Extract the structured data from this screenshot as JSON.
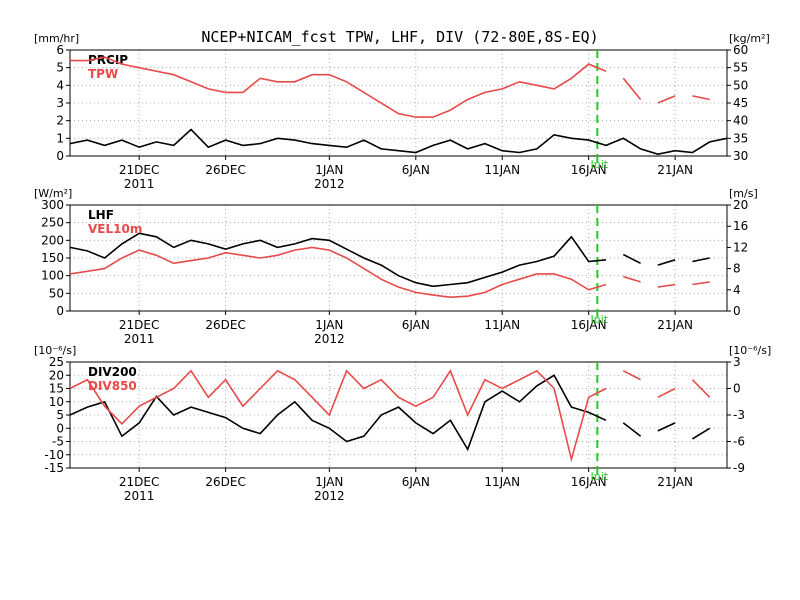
{
  "title": "NCEP+NICAM_fcst TPW, LHF, DIV (72-80E,8S-EQ)",
  "colors": {
    "black": "#000000",
    "red": "#e84a4a",
    "init_line": "#22cc22",
    "grid": "#aaaaaa"
  },
  "x_axis": {
    "ticks": [
      {
        "day": 4,
        "label": "21DEC",
        "year": "2011"
      },
      {
        "day": 9,
        "label": "26DEC",
        "year": ""
      },
      {
        "day": 15,
        "label": "1JAN",
        "year": "2012"
      },
      {
        "day": 20,
        "label": "6JAN",
        "year": ""
      },
      {
        "day": 25,
        "label": "11JAN",
        "year": ""
      },
      {
        "day": 30,
        "label": "16JAN",
        "year": ""
      },
      {
        "day": 35,
        "label": "21JAN",
        "year": ""
      }
    ],
    "range": [
      0,
      38
    ],
    "init_day": 30.5,
    "init_label": "Init"
  },
  "chart_data": [
    {
      "type": "line",
      "id": "tpw",
      "left_unit": "[mm/hr]",
      "right_unit": "[kg/m²]",
      "left_ylim": [
        0,
        6
      ],
      "left_ticks": [
        0,
        1,
        2,
        3,
        4,
        5,
        6
      ],
      "right_ylim": [
        30,
        60
      ],
      "right_ticks": [
        30,
        35,
        40,
        45,
        50,
        55,
        60
      ],
      "x": [
        0,
        1,
        2,
        3,
        4,
        5,
        6,
        7,
        8,
        9,
        10,
        11,
        12,
        13,
        14,
        15,
        16,
        17,
        18,
        19,
        20,
        21,
        22,
        23,
        24,
        25,
        26,
        27,
        28,
        29,
        30,
        31,
        32,
        33,
        34,
        35,
        36,
        37,
        38
      ],
      "series": [
        {
          "name": "PRCIP",
          "axis": "left",
          "color": "black",
          "values": [
            0.7,
            0.9,
            0.6,
            0.9,
            0.5,
            0.8,
            0.6,
            1.5,
            0.5,
            0.9,
            0.6,
            0.7,
            1.0,
            0.9,
            0.7,
            0.6,
            0.5,
            0.9,
            0.4,
            0.3,
            0.2,
            0.6,
            0.9,
            0.4,
            0.7,
            0.3,
            0.2,
            0.4,
            1.2,
            1.0,
            0.9,
            0.6,
            1.0,
            0.4,
            0.1,
            0.3,
            0.2,
            0.8,
            1.0
          ],
          "gaps": []
        },
        {
          "name": "TPW",
          "axis": "right",
          "color": "red",
          "values": [
            57,
            57,
            58,
            56,
            55,
            54,
            53,
            51,
            49,
            48,
            48,
            52,
            51,
            51,
            53,
            53,
            51,
            48,
            45,
            42,
            41,
            41,
            43,
            46,
            48,
            49,
            51,
            50,
            49,
            52,
            56,
            54,
            52,
            46,
            45,
            47,
            47,
            46,
            46
          ],
          "gaps": [
            31.5,
            33.5,
            35.5,
            37.5
          ]
        }
      ]
    },
    {
      "type": "line",
      "id": "lhf",
      "left_unit": "[W/m²]",
      "right_unit": "[m/s]",
      "left_ylim": [
        0,
        300
      ],
      "left_ticks": [
        0,
        50,
        100,
        150,
        200,
        250,
        300
      ],
      "right_ylim": [
        0,
        20
      ],
      "right_ticks": [
        0,
        4,
        8,
        12,
        16,
        20
      ],
      "x": [
        0,
        1,
        2,
        3,
        4,
        5,
        6,
        7,
        8,
        9,
        10,
        11,
        12,
        13,
        14,
        15,
        16,
        17,
        18,
        19,
        20,
        21,
        22,
        23,
        24,
        25,
        26,
        27,
        28,
        29,
        30,
        31,
        32,
        33,
        34,
        35,
        36,
        37,
        38
      ],
      "series": [
        {
          "name": "LHF",
          "axis": "left",
          "color": "black",
          "values": [
            180,
            170,
            150,
            190,
            220,
            210,
            180,
            200,
            190,
            175,
            190,
            200,
            180,
            190,
            205,
            200,
            175,
            150,
            130,
            100,
            80,
            70,
            75,
            80,
            95,
            110,
            130,
            140,
            155,
            210,
            140,
            145,
            160,
            135,
            130,
            145,
            140,
            150,
            150
          ],
          "gaps": [
            31.5,
            33.5,
            35.5,
            37.5
          ]
        },
        {
          "name": "VEL10m",
          "axis": "right",
          "color": "red",
          "values": [
            7,
            7.5,
            8,
            10,
            11.5,
            10.5,
            9,
            9.5,
            10,
            11,
            10.5,
            10,
            10.5,
            11.5,
            12,
            11.5,
            10,
            8,
            6,
            4.5,
            3.5,
            3,
            2.6,
            2.8,
            3.5,
            5,
            6,
            7,
            7,
            6,
            4,
            5,
            6.5,
            5.5,
            4.5,
            5,
            5,
            5.5,
            5.5
          ],
          "gaps": [
            31.5,
            33.5,
            35.5,
            37.5
          ]
        }
      ]
    },
    {
      "type": "line",
      "id": "div",
      "left_unit": "[10⁻⁶/s]",
      "right_unit": "[10⁻⁶/s]",
      "left_ylim": [
        -15,
        25
      ],
      "left_ticks": [
        -15,
        -10,
        -5,
        0,
        5,
        10,
        15,
        20,
        25
      ],
      "right_ylim": [
        -9,
        3
      ],
      "right_ticks": [
        -9,
        -6,
        -3,
        0,
        3
      ],
      "x": [
        0,
        1,
        2,
        3,
        4,
        5,
        6,
        7,
        8,
        9,
        10,
        11,
        12,
        13,
        14,
        15,
        16,
        17,
        18,
        19,
        20,
        21,
        22,
        23,
        24,
        25,
        26,
        27,
        28,
        29,
        30,
        31,
        32,
        33,
        34,
        35,
        36,
        37,
        38
      ],
      "series": [
        {
          "name": "DIV200",
          "axis": "left",
          "color": "black",
          "values": [
            5,
            8,
            10,
            -3,
            2,
            12,
            5,
            8,
            6,
            4,
            0,
            -2,
            5,
            10,
            3,
            0,
            -5,
            -3,
            5,
            8,
            2,
            -2,
            3,
            -8,
            10,
            14,
            10,
            16,
            20,
            8,
            6,
            3,
            2,
            -3,
            -1,
            2,
            -4,
            0,
            6
          ],
          "gaps": [
            31.5,
            33.5,
            35.5,
            37.5
          ]
        },
        {
          "name": "DIV850",
          "axis": "right",
          "color": "red",
          "values": [
            0,
            1,
            -2,
            -4,
            -2,
            -1,
            0,
            2,
            -1,
            1,
            -2,
            0,
            2,
            1,
            -1,
            -3,
            2,
            0,
            1,
            -1,
            -2,
            -1,
            2,
            -3,
            1,
            0,
            1,
            2,
            0,
            -8,
            -1,
            0,
            2,
            1,
            -1,
            0,
            1,
            -1,
            -5
          ],
          "gaps": [
            31.5,
            33.5,
            35.5,
            37.5
          ]
        }
      ]
    }
  ]
}
